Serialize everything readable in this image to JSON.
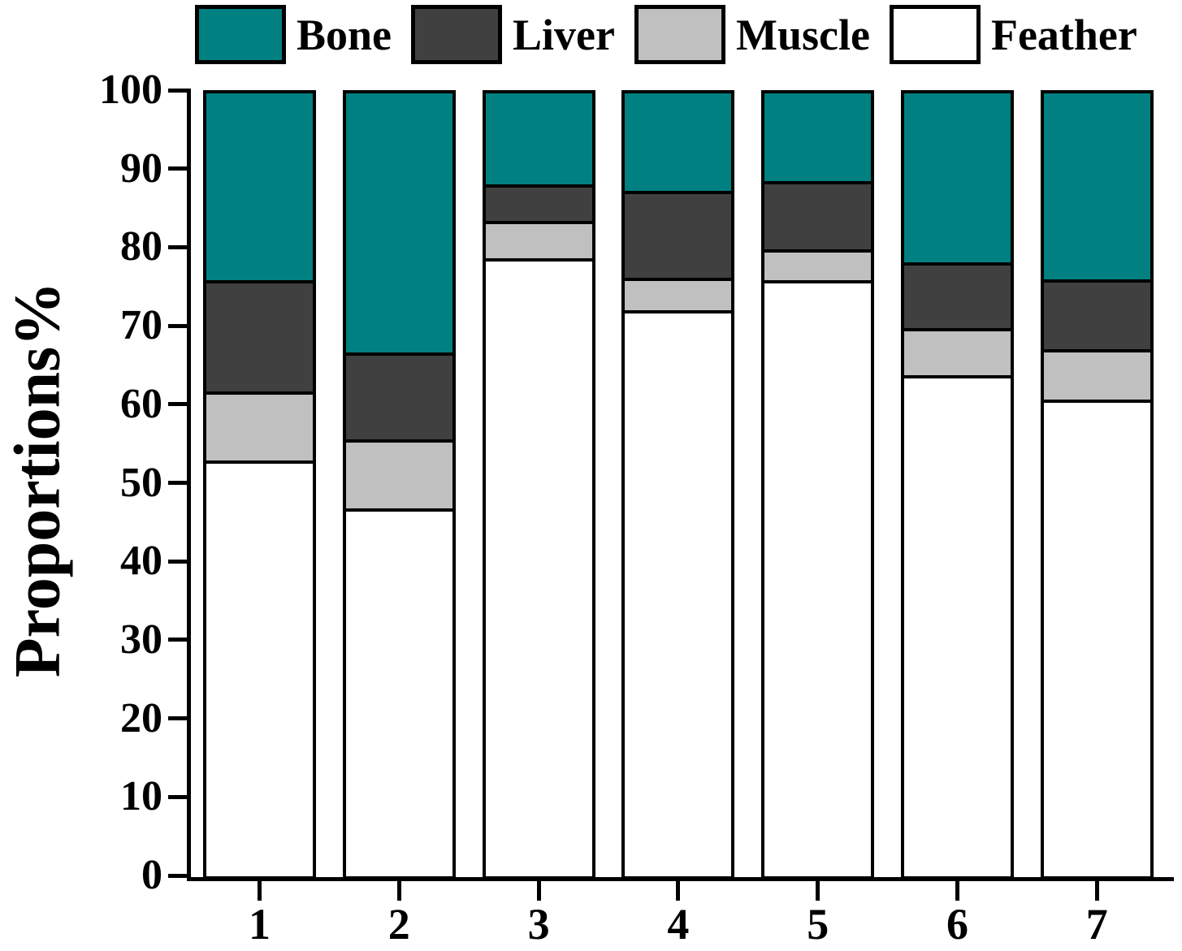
{
  "chart_data": {
    "type": "bar",
    "subtype": "stacked",
    "stacked": true,
    "title": "",
    "xlabel": "",
    "ylabel": "Proportions%",
    "ylim": [
      0,
      100
    ],
    "yticks": [
      0,
      10,
      20,
      30,
      40,
      50,
      60,
      70,
      80,
      90,
      100
    ],
    "grid": false,
    "legend_position": "top",
    "legend_order": [
      "Bone",
      "Liver",
      "Muscle",
      "Feather"
    ],
    "bar_outline_color": "#000000",
    "categories": [
      "1",
      "2",
      "3",
      "4",
      "5",
      "6",
      "7"
    ],
    "series": [
      {
        "name": "Feather",
        "color": "#ffffff",
        "values": [
          52.8,
          46.7,
          78.6,
          72.0,
          75.8,
          63.7,
          60.6
        ]
      },
      {
        "name": "Muscle",
        "color": "#c0c0c0",
        "values": [
          8.8,
          8.8,
          4.8,
          4.1,
          3.9,
          6.0,
          6.4
        ]
      },
      {
        "name": "Liver",
        "color": "#404040",
        "values": [
          14.2,
          11.1,
          4.6,
          11.1,
          8.7,
          8.4,
          8.9
        ]
      },
      {
        "name": "Bone",
        "color": "#008080",
        "values": [
          24.2,
          33.4,
          12.0,
          12.8,
          11.6,
          21.9,
          24.1
        ]
      }
    ]
  }
}
